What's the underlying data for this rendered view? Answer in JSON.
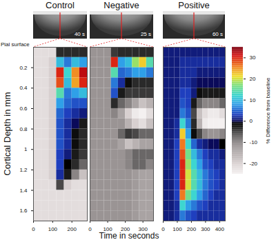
{
  "chart_data": {
    "type": "heatmap",
    "xlabel": "Time in seconds",
    "ylabel": "Cortical Depth in mm",
    "annotation": "Pial surface",
    "color_label": "% Difference from baseline",
    "color_range": [
      -25,
      35
    ],
    "color_ticks": [
      -20,
      -10,
      0,
      10,
      20,
      30
    ],
    "ylim": [
      1.7,
      0
    ],
    "yticks": [
      0.2,
      0.4,
      0.6,
      0.8,
      1,
      1.2,
      1.4,
      1.6
    ],
    "y": [
      0.05,
      0.15,
      0.25,
      0.35,
      0.45,
      0.55,
      0.65,
      0.75,
      0.85,
      0.95,
      1.05,
      1.15,
      1.25,
      1.35,
      1.45,
      1.55,
      1.65
    ],
    "panels": [
      {
        "title": "Control",
        "frame_label": "40 s",
        "xlim": [
          0,
          280
        ],
        "xticks": [
          0,
          100,
          200
        ],
        "x": [
          20,
          60,
          100,
          140,
          180,
          220,
          260
        ],
        "values": [
          [
            -22,
            -22,
            -22,
            -4,
            -4,
            -4,
            -4
          ],
          [
            -22,
            -22,
            -20,
            10,
            6,
            10,
            8
          ],
          [
            -22,
            -22,
            -20,
            30,
            12,
            25,
            32
          ],
          [
            -22,
            -22,
            -20,
            28,
            10,
            24,
            30
          ],
          [
            -22,
            -22,
            -20,
            14,
            6,
            8,
            10
          ],
          [
            -22,
            -22,
            -20,
            8,
            5,
            4,
            4
          ],
          [
            -22,
            -22,
            -20,
            5,
            3,
            2,
            1
          ],
          [
            -22,
            -22,
            -20,
            4,
            2,
            0,
            -3
          ],
          [
            -22,
            -22,
            -20,
            4,
            2,
            -2,
            -4
          ],
          [
            -22,
            -22,
            -20,
            4,
            2,
            -2,
            -4
          ],
          [
            -22,
            -22,
            -20,
            3,
            1,
            -3,
            -5
          ],
          [
            -22,
            -22,
            -20,
            3,
            -1,
            -4,
            -8
          ],
          [
            -22,
            -22,
            -20,
            2,
            -3,
            -10,
            -18
          ],
          [
            -22,
            -22,
            -22,
            -6,
            -20,
            -22,
            -22
          ],
          [
            -22,
            -22,
            -22,
            -22,
            -22,
            -22,
            -22
          ],
          [
            -22,
            -22,
            -22,
            -22,
            -22,
            -22,
            -22
          ],
          [
            -22,
            -22,
            -22,
            -22,
            -22,
            -22,
            -22
          ]
        ]
      },
      {
        "title": "Negative",
        "frame_label": "25 s",
        "xlim": [
          0,
          360
        ],
        "xticks": [
          0,
          100,
          200,
          300
        ],
        "x": [
          20,
          60,
          100,
          140,
          180,
          220,
          260,
          300,
          340
        ],
        "values": [
          [
            -12,
            -12,
            -12,
            -5,
            -4,
            -4,
            -4,
            -4,
            -4
          ],
          [
            -12,
            -12,
            -12,
            30,
            8,
            10,
            18,
            22,
            14
          ],
          [
            -12,
            -12,
            -12,
            14,
            5,
            6,
            8,
            8,
            6
          ],
          [
            -12,
            -12,
            -12,
            6,
            2,
            -2,
            -4,
            -4,
            -4
          ],
          [
            -12,
            -12,
            -12,
            4,
            -3,
            -5,
            -5,
            -5,
            -5
          ],
          [
            -12,
            -12,
            -12,
            -4,
            -8,
            -10,
            -14,
            -18,
            -16
          ],
          [
            -12,
            -12,
            -12,
            -10,
            -14,
            -20,
            -24,
            -25,
            -22
          ],
          [
            -12,
            -12,
            -12,
            -12,
            -12,
            -16,
            -20,
            -22,
            -18
          ],
          [
            -12,
            -12,
            -12,
            -12,
            -8,
            -5,
            -6,
            -8,
            -8
          ],
          [
            -12,
            -12,
            -12,
            -12,
            -14,
            -18,
            -16,
            -14,
            -14
          ],
          [
            -12,
            -12,
            -12,
            -12,
            -12,
            -10,
            -8,
            -8,
            -8
          ],
          [
            -12,
            -12,
            -12,
            -12,
            -12,
            -10,
            -8,
            -8,
            -10
          ],
          [
            -12,
            -12,
            -12,
            -12,
            -12,
            -12,
            -13,
            -14,
            -14
          ],
          [
            -12,
            -12,
            -12,
            -12,
            -12,
            -12,
            -13,
            -14,
            -14
          ],
          [
            -12,
            -12,
            -12,
            -12,
            -12,
            -12,
            -13,
            -14,
            -14
          ],
          [
            -12,
            -12,
            -12,
            -12,
            -12,
            -12,
            -13,
            -14,
            -14
          ],
          [
            -12,
            -12,
            -12,
            -12,
            -12,
            -12,
            -13,
            -14,
            -14
          ]
        ]
      },
      {
        "title": "Positive",
        "frame_label": "60 s",
        "xlim": [
          0,
          440
        ],
        "xticks": [
          0,
          100,
          200,
          300,
          400
        ],
        "x": [
          20,
          60,
          100,
          140,
          180,
          220,
          260,
          300,
          340,
          380,
          420
        ],
        "values": [
          [
            1,
            1,
            1,
            1,
            1,
            1,
            1,
            1,
            1,
            1,
            1
          ],
          [
            1,
            1,
            1,
            2,
            2,
            2,
            2,
            2,
            2,
            2,
            2
          ],
          [
            1,
            1,
            1,
            2,
            2,
            2,
            1,
            1,
            1,
            1,
            1
          ],
          [
            1,
            1,
            1,
            2,
            2,
            1,
            0,
            0,
            0,
            0,
            0
          ],
          [
            1,
            1,
            1,
            3,
            3,
            1,
            -2,
            -3,
            -3,
            -3,
            -3
          ],
          [
            1,
            1,
            1,
            4,
            3,
            -3,
            -8,
            -10,
            -10,
            -10,
            -8
          ],
          [
            1,
            1,
            1,
            6,
            4,
            -6,
            -18,
            -22,
            -24,
            -24,
            -22
          ],
          [
            1,
            1,
            2,
            12,
            6,
            -4,
            -16,
            -24,
            -25,
            -25,
            -25
          ],
          [
            1,
            1,
            2,
            22,
            8,
            -2,
            -6,
            -10,
            -12,
            -12,
            -10
          ],
          [
            1,
            1,
            3,
            26,
            12,
            5,
            2,
            1,
            0,
            0,
            -1
          ],
          [
            1,
            1,
            3,
            28,
            16,
            10,
            6,
            3,
            2,
            2,
            1
          ],
          [
            1,
            1,
            3,
            30,
            18,
            12,
            8,
            4,
            3,
            2,
            2
          ],
          [
            1,
            1,
            3,
            30,
            20,
            14,
            10,
            6,
            4,
            3,
            2
          ],
          [
            1,
            1,
            3,
            30,
            20,
            14,
            10,
            6,
            4,
            3,
            2
          ],
          [
            1,
            1,
            3,
            26,
            16,
            12,
            8,
            5,
            3,
            2,
            2
          ],
          [
            1,
            1,
            2,
            12,
            8,
            6,
            4,
            3,
            2,
            2,
            2
          ],
          [
            1,
            1,
            2,
            6,
            4,
            3,
            2,
            2,
            2,
            2,
            2
          ]
        ]
      }
    ]
  }
}
